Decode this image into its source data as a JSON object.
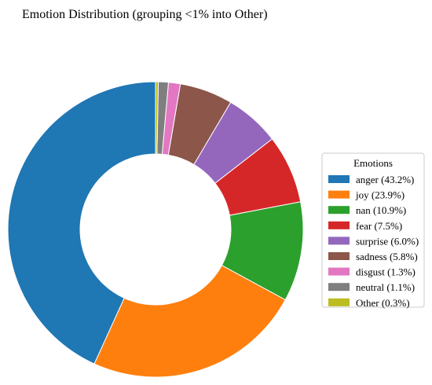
{
  "chart_data": {
    "type": "pie",
    "donut": true,
    "title": "Emotion Distribution (grouping <1% into Other)",
    "legend_title": "Emotions",
    "legend_position": "right",
    "start_angle_deg": 90,
    "direction": "counterclockwise",
    "slices": [
      {
        "label": "anger",
        "value": 43.2,
        "legend": "anger (43.2%)",
        "color": "#1f77b4"
      },
      {
        "label": "joy",
        "value": 23.9,
        "legend": "joy (23.9%)",
        "color": "#ff7f0e"
      },
      {
        "label": "nan",
        "value": 10.9,
        "legend": "nan (10.9%)",
        "color": "#2ca02c"
      },
      {
        "label": "fear",
        "value": 7.5,
        "legend": "fear (7.5%)",
        "color": "#d62728"
      },
      {
        "label": "surprise",
        "value": 6.0,
        "legend": "surprise (6.0%)",
        "color": "#9467bd"
      },
      {
        "label": "sadness",
        "value": 5.8,
        "legend": "sadness (5.8%)",
        "color": "#8c564b"
      },
      {
        "label": "disgust",
        "value": 1.3,
        "legend": "disgust (1.3%)",
        "color": "#e377c2"
      },
      {
        "label": "neutral",
        "value": 1.1,
        "legend": "neutral (1.1%)",
        "color": "#7f7f7f"
      },
      {
        "label": "Other",
        "value": 0.3,
        "legend": "Other (0.3%)",
        "color": "#bcbd22"
      }
    ]
  }
}
